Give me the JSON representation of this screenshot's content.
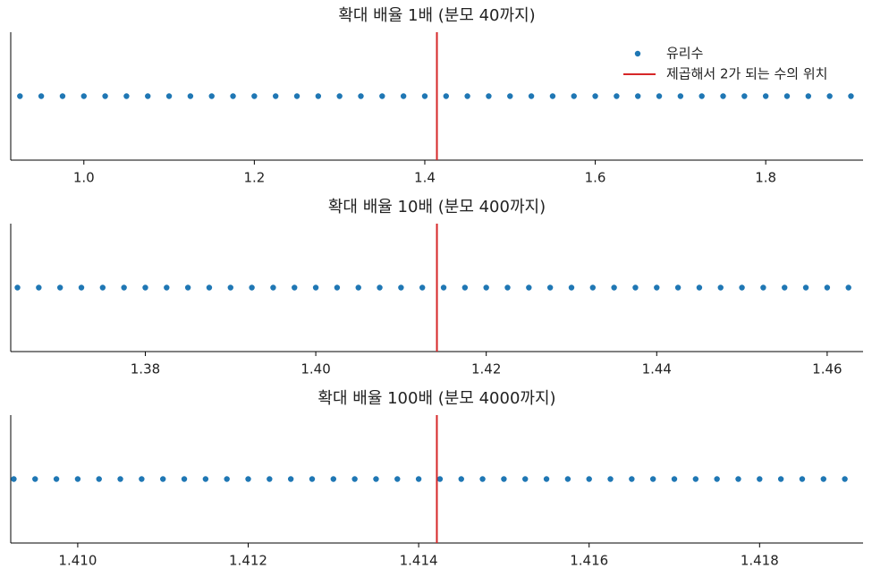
{
  "chart_data": [
    {
      "type": "scatter",
      "title": "확대 배율 1배 (분모 40까지)",
      "legend": "upper right",
      "series": [
        {
          "name": "유리수",
          "color": "#1f77b4",
          "x": [
            0.925,
            0.95,
            0.975,
            1.0,
            1.025,
            1.05,
            1.075,
            1.1,
            1.125,
            1.15,
            1.175,
            1.2,
            1.225,
            1.25,
            1.275,
            1.3,
            1.325,
            1.35,
            1.375,
            1.4,
            1.425,
            1.45,
            1.475,
            1.5,
            1.525,
            1.55,
            1.575,
            1.6,
            1.625,
            1.65,
            1.675,
            1.7,
            1.725,
            1.75,
            1.775,
            1.8,
            1.825,
            1.85,
            1.875,
            1.9
          ],
          "values": [
            0,
            0,
            0,
            0,
            0,
            0,
            0,
            0,
            0,
            0,
            0,
            0,
            0,
            0,
            0,
            0,
            0,
            0,
            0,
            0,
            0,
            0,
            0,
            0,
            0,
            0,
            0,
            0,
            0,
            0,
            0,
            0,
            0,
            0,
            0,
            0,
            0,
            0,
            0,
            0
          ]
        }
      ],
      "vline": {
        "name": "제곱해서 2가 되는 수의 위치",
        "x": 1.41421356,
        "color": "#d62728"
      },
      "xlim": [
        0.9142,
        1.9142
      ],
      "ylim": [
        -1,
        1
      ],
      "xticks": [
        {
          "value": 1,
          "label": "1.0"
        },
        1.2,
        1.4,
        1.6,
        1.8
      ]
    },
    {
      "type": "scatter",
      "title": "확대 배율 10배 (분모 400까지)",
      "series": [
        {
          "color": "#1f77b4",
          "x": [
            1.365,
            1.3675,
            1.37,
            1.3725,
            1.375,
            1.3775,
            1.38,
            1.3825,
            1.385,
            1.3875,
            1.39,
            1.3925,
            1.395,
            1.3975,
            1.4,
            1.4025,
            1.405,
            1.4075,
            1.41,
            1.4125,
            1.415,
            1.4175,
            1.42,
            1.4225,
            1.425,
            1.4275,
            1.43,
            1.4325,
            1.435,
            1.4375,
            1.44,
            1.4425,
            1.445,
            1.4475,
            1.45,
            1.4525,
            1.455,
            1.4575,
            1.46,
            1.4625
          ],
          "values": [
            0,
            0,
            0,
            0,
            0,
            0,
            0,
            0,
            0,
            0,
            0,
            0,
            0,
            0,
            0,
            0,
            0,
            0,
            0,
            0,
            0,
            0,
            0,
            0,
            0,
            0,
            0,
            0,
            0,
            0,
            0,
            0,
            0,
            0,
            0,
            0,
            0,
            0,
            0,
            0
          ]
        }
      ],
      "vline": {
        "x": 1.41421356,
        "color": "#d62728"
      },
      "xlim": [
        1.36421,
        1.46421
      ],
      "ylim": [
        -1,
        1
      ],
      "xticks": [
        1.38,
        {
          "value": 1.4,
          "label": "1.40"
        },
        1.42,
        1.44,
        1.46
      ]
    },
    {
      "type": "scatter",
      "title": "확대 배율 100배 (분모 4000까지)",
      "series": [
        {
          "color": "#1f77b4",
          "x": [
            1.40925,
            1.4095,
            1.40975,
            1.41,
            1.41025,
            1.4105,
            1.41075,
            1.411,
            1.41125,
            1.4115,
            1.41175,
            1.412,
            1.41225,
            1.4125,
            1.41275,
            1.413,
            1.41325,
            1.4135,
            1.41375,
            1.414,
            1.41425,
            1.4145,
            1.41475,
            1.415,
            1.41525,
            1.4155,
            1.41575,
            1.416,
            1.41625,
            1.4165,
            1.41675,
            1.417,
            1.41725,
            1.4175,
            1.41775,
            1.418,
            1.41825,
            1.4185,
            1.41875,
            1.419
          ],
          "values": [
            0,
            0,
            0,
            0,
            0,
            0,
            0,
            0,
            0,
            0,
            0,
            0,
            0,
            0,
            0,
            0,
            0,
            0,
            0,
            0,
            0,
            0,
            0,
            0,
            0,
            0,
            0,
            0,
            0,
            0,
            0,
            0,
            0,
            0,
            0,
            0,
            0,
            0,
            0,
            0
          ]
        }
      ],
      "vline": {
        "x": 1.41421356,
        "color": "#d62728"
      },
      "xlim": [
        1.409214,
        1.419214
      ],
      "ylim": [
        -1,
        1
      ],
      "xticks": [
        {
          "value": 1.41,
          "label": "1.410"
        },
        1.412,
        1.414,
        1.416,
        1.418
      ]
    }
  ]
}
